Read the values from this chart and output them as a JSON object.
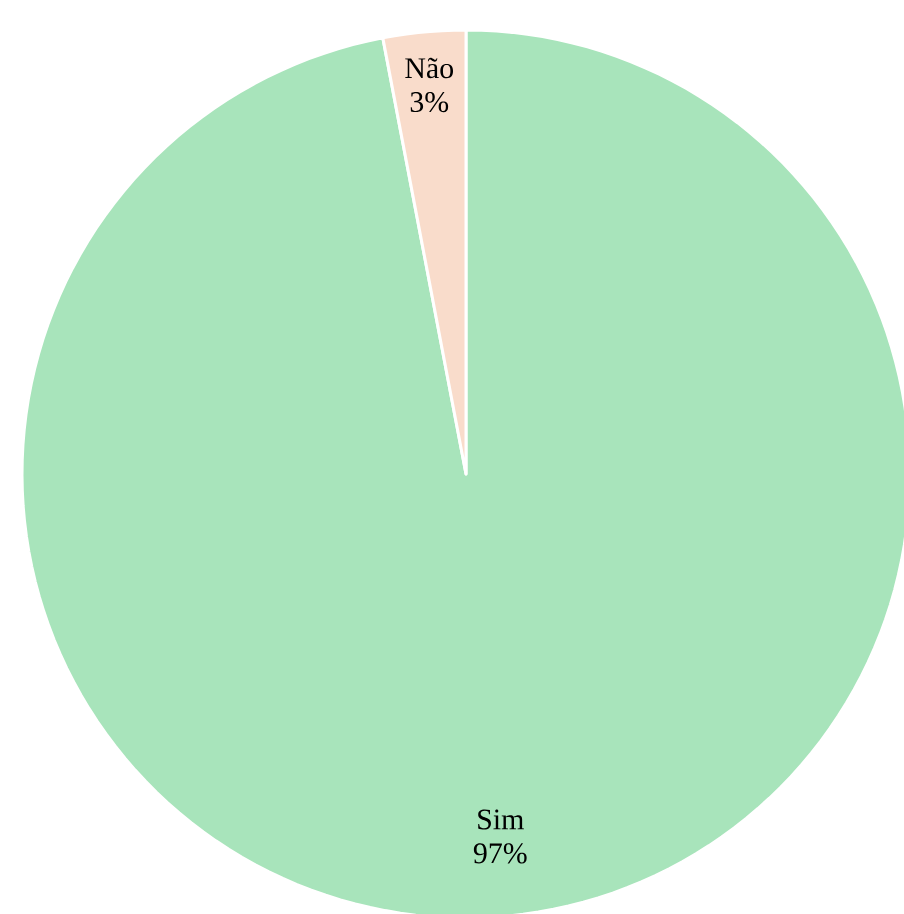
{
  "chart_data": {
    "type": "pie",
    "categories": [
      "Sim",
      "Não"
    ],
    "values": [
      97,
      3
    ],
    "colors": [
      "#a8e4bb",
      "#f9dccb"
    ],
    "value_labels": [
      "97%",
      "3%"
    ]
  }
}
